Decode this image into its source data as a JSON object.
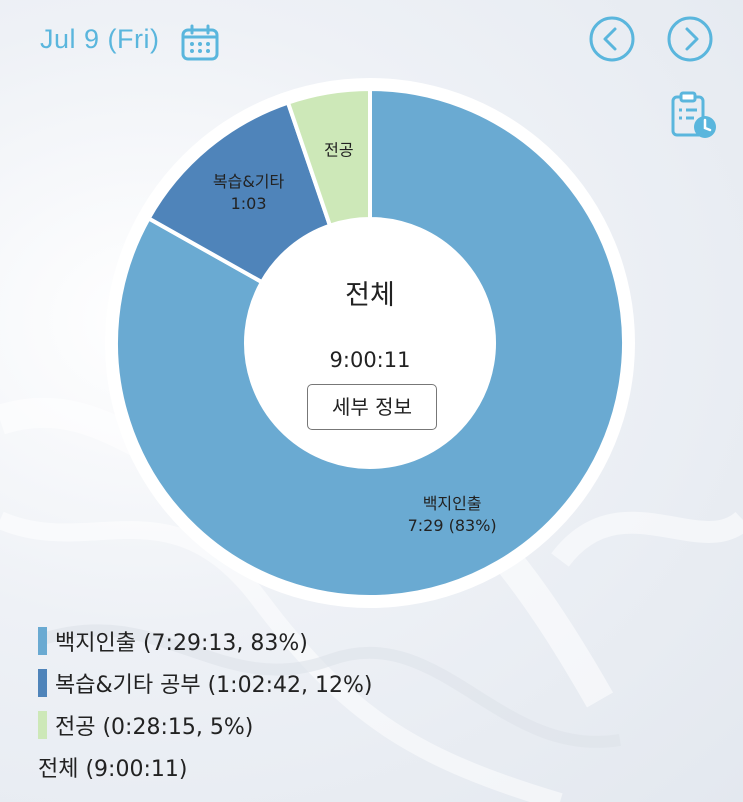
{
  "header": {
    "date": "Jul 9 (Fri)",
    "icons": [
      "calendar-icon",
      "chevron-left-icon",
      "chevron-right-icon",
      "clipboard-clock-icon"
    ],
    "accent_color": "#5ab6dd"
  },
  "center": {
    "title": "전체",
    "time": "9:00:11",
    "detail_button": "세부 정보"
  },
  "legend": {
    "items": [
      {
        "label": "백지인출 (7:29:13, 83%)",
        "color": "#6aaad2"
      },
      {
        "label": "복습&기타 공부 (1:02:42, 12%)",
        "color": "#4f84ba"
      },
      {
        "label": "전공 (0:28:15, 5%)",
        "color": "#cde8b8"
      }
    ],
    "total": "전체 (9:00:11)"
  },
  "chart_data": {
    "type": "pie",
    "donut": true,
    "start_angle": "top",
    "direction": "clockwise",
    "slices": [
      {
        "name": "백지인출",
        "label_lines": [
          "백지인출",
          "7:29 (83%)"
        ],
        "value": 7.487,
        "percent": 83,
        "color": "#6aaad2"
      },
      {
        "name": "복습&기타",
        "label_lines": [
          "복습&기타",
          "1:03"
        ],
        "value": 1.045,
        "percent": 12,
        "color": "#4f84ba"
      },
      {
        "name": "전공",
        "label_lines": [
          "전공"
        ],
        "value": 0.471,
        "percent": 5,
        "color": "#cde8b8"
      }
    ]
  }
}
